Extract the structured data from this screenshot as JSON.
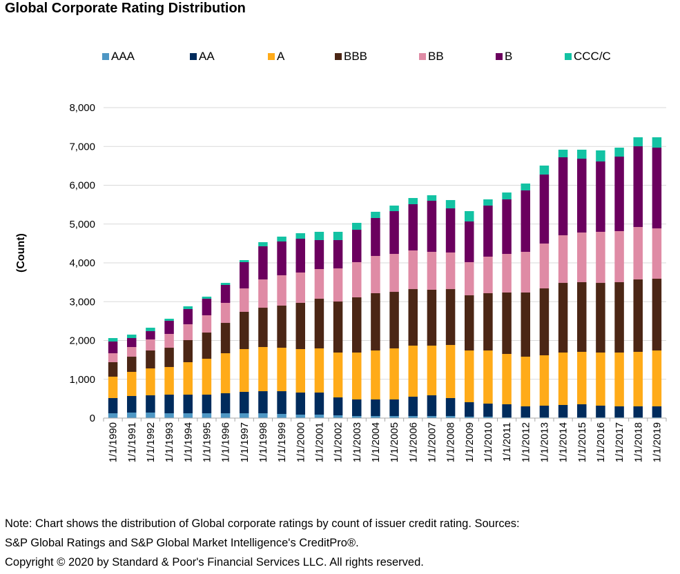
{
  "chart_data": {
    "type": "bar",
    "stacked": true,
    "title": "Global Corporate Rating Distribution",
    "xlabel": "",
    "ylabel": "(Count)",
    "ylim": [
      0,
      8000
    ],
    "yticks": [
      0,
      1000,
      2000,
      3000,
      4000,
      5000,
      6000,
      7000,
      8000
    ],
    "ytick_labels": [
      "0",
      "1,000",
      "2,000",
      "3,000",
      "4,000",
      "5,000",
      "6,000",
      "7,000",
      "8,000"
    ],
    "grid": true,
    "legend_position": "top",
    "categories": [
      "1/1/1990",
      "1/1/1991",
      "1/1/1992",
      "1/1/1993",
      "1/1/1994",
      "1/1/1995",
      "1/1/1996",
      "1/1/1997",
      "1/1/1998",
      "1/1/1999",
      "1/1/2000",
      "1/1/2001",
      "1/1/2002",
      "1/1/2003",
      "1/1/2004",
      "1/1/2005",
      "1/1/2006",
      "1/1/2007",
      "1/1/2008",
      "1/1/2009",
      "1/1/2010",
      "1/1/2011",
      "1/1/2012",
      "1/1/2013",
      "1/1/2014",
      "1/1/2015",
      "1/1/2016",
      "1/1/2017",
      "1/1/2018",
      "1/1/2019"
    ],
    "series": [
      {
        "name": "AAA",
        "color": "#4e97c4",
        "values": [
          124,
          142,
          142,
          124,
          124,
          124,
          124,
          124,
          124,
          107,
          89,
          89,
          71,
          53,
          53,
          53,
          53,
          53,
          53,
          36,
          36,
          18,
          18,
          18,
          18,
          18,
          18,
          18,
          18,
          18
        ]
      },
      {
        "name": "AA",
        "color": "#002b5c",
        "values": [
          392,
          427,
          445,
          480,
          480,
          480,
          516,
          552,
          569,
          586,
          569,
          569,
          462,
          427,
          427,
          427,
          498,
          534,
          463,
          373,
          337,
          338,
          284,
          302,
          320,
          338,
          302,
          284,
          284,
          284
        ]
      },
      {
        "name": "A",
        "color": "#ffab19",
        "values": [
          551,
          622,
          693,
          712,
          836,
          925,
          1031,
          1102,
          1138,
          1120,
          1120,
          1138,
          1156,
          1209,
          1262,
          1316,
          1316,
          1280,
          1368,
          1333,
          1369,
          1297,
          1280,
          1298,
          1351,
          1351,
          1369,
          1387,
          1405,
          1440
        ]
      },
      {
        "name": "BBB",
        "color": "#4b2615",
        "values": [
          373,
          391,
          462,
          497,
          569,
          675,
          782,
          960,
          1013,
          1085,
          1191,
          1280,
          1315,
          1422,
          1476,
          1457,
          1457,
          1440,
          1440,
          1422,
          1476,
          1583,
          1654,
          1724,
          1795,
          1795,
          1795,
          1813,
          1866,
          1849
        ]
      },
      {
        "name": "BB",
        "color": "#df8ba5",
        "values": [
          231,
          249,
          285,
          356,
          409,
          445,
          516,
          604,
          729,
          782,
          782,
          764,
          854,
          907,
          960,
          978,
          996,
          977,
          943,
          854,
          942,
          995,
          1048,
          1156,
          1227,
          1280,
          1316,
          1316,
          1351,
          1298
        ]
      },
      {
        "name": "B",
        "color": "#6b005e",
        "values": [
          302,
          231,
          213,
          338,
          391,
          427,
          462,
          676,
          854,
          871,
          871,
          747,
          729,
          835,
          978,
          1102,
          1191,
          1316,
          1137,
          1049,
          1316,
          1405,
          1583,
          1778,
          2009,
          1902,
          1813,
          1920,
          2080,
          2080
        ]
      },
      {
        "name": "CCC/C",
        "color": "#13c2a3",
        "values": [
          89,
          89,
          89,
          53,
          71,
          53,
          53,
          53,
          106,
          125,
          142,
          213,
          213,
          178,
          160,
          143,
          160,
          142,
          214,
          266,
          160,
          177,
          177,
          231,
          196,
          232,
          285,
          231,
          232,
          267
        ]
      }
    ]
  },
  "footer": {
    "note_line1": "Note: Chart shows the distribution of Global corporate ratings by count of issuer credit rating. Sources:",
    "note_line2": "S&P Global Ratings and S&P Global Market Intelligence's CreditPro®.",
    "copyright": "Copyright © 2020 by Standard & Poor's Financial Services LLC. All rights reserved."
  }
}
